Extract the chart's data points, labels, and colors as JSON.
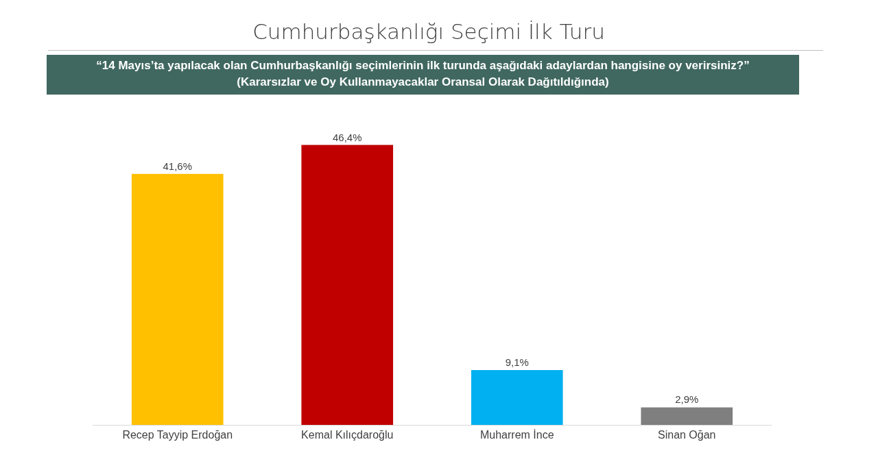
{
  "chart_data": {
    "type": "bar",
    "title": "Cumhurbaşkanlığı Seçimi İlk Turu",
    "subtitle": "“14 Mayıs’ta yapılacak olan Cumhurbaşkanlığı seçimlerinin ilk turunda aşağıdaki adaylardan hangisine oy verirsiniz?”",
    "annotations": [
      "(Kararsızlar ve Oy Kullanmayacaklar Oransal Olarak Dağıtıldığında)"
    ],
    "categories": [
      "Recep Tayyip Erdoğan",
      "Kemal Kılıçdaroğlu",
      "Muharrem İnce",
      "Sinan Oğan"
    ],
    "values": [
      41.6,
      46.4,
      9.1,
      2.9
    ],
    "value_labels": [
      "41,6%",
      "46,4%",
      "9,1%",
      "2,9%"
    ],
    "colors": [
      "#ffc000",
      "#c00000",
      "#00b0f0",
      "#7f7f7f"
    ]
  }
}
